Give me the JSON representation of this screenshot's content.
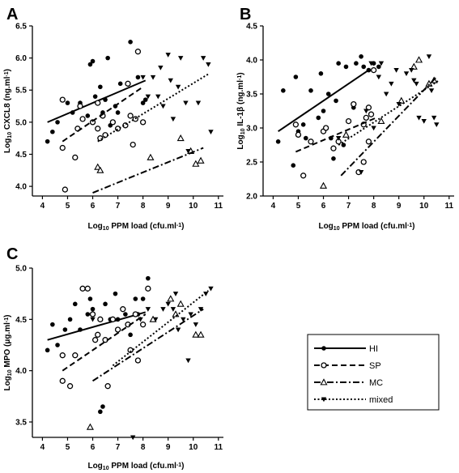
{
  "panels_text": {
    "A": "A",
    "B": "B",
    "C": "C"
  },
  "legend": {
    "items": [
      {
        "key": "HI",
        "label": "HI",
        "marker": "filled-circle",
        "line": "solid"
      },
      {
        "key": "SP",
        "label": "SP",
        "marker": "open-circle",
        "line": "dashed"
      },
      {
        "key": "MC",
        "label": "MC",
        "marker": "open-triangle",
        "line": "dash-dot"
      },
      {
        "key": "mixed",
        "label": "mixed",
        "marker": "filled-down-triangle",
        "line": "dotted"
      }
    ]
  },
  "chart_data": [
    {
      "type": "scatter",
      "panel": "A",
      "xlabel": {
        "prefix": "Log",
        "sub": "10",
        "rest": " PPM load (cfu.ml",
        "sup": "-1",
        "close": ")"
      },
      "ylabel": {
        "prefix": "Log",
        "sub": "10",
        "rest": " CXCL8 (ng.ml",
        "sup": "-1",
        "close": ")"
      },
      "xlim": [
        3.6,
        11.2
      ],
      "ylim": [
        3.85,
        6.5
      ],
      "xticks": [
        4,
        5,
        6,
        7,
        8,
        9,
        10,
        11
      ],
      "yticks": [
        4.0,
        4.5,
        5.0,
        5.5,
        6.0,
        6.5
      ],
      "ytick_labels": [
        "4.0",
        "4.5",
        "5.0",
        "5.5",
        "6.0",
        "6.5"
      ],
      "series": [
        {
          "key": "HI",
          "points": [
            [
              4.2,
              4.7
            ],
            [
              4.4,
              4.85
            ],
            [
              4.6,
              5.0
            ],
            [
              4.8,
              5.35
            ],
            [
              5.0,
              5.3
            ],
            [
              5.2,
              5.15
            ],
            [
              5.5,
              5.3
            ],
            [
              5.8,
              5.1
            ],
            [
              5.9,
              5.9
            ],
            [
              6.0,
              5.95
            ],
            [
              6.1,
              5.4
            ],
            [
              6.3,
              5.55
            ],
            [
              6.5,
              5.35
            ],
            [
              6.6,
              6.0
            ],
            [
              6.7,
              4.95
            ],
            [
              6.9,
              5.25
            ],
            [
              7.0,
              5.15
            ],
            [
              7.1,
              5.6
            ],
            [
              7.5,
              6.25
            ],
            [
              7.8,
              5.7
            ],
            [
              8.0,
              5.3
            ],
            [
              8.1,
              5.35
            ],
            [
              6.4,
              5.15
            ]
          ],
          "fit": [
            [
              4.2,
              5.0
            ],
            [
              8.1,
              5.65
            ]
          ]
        },
        {
          "key": "SP",
          "points": [
            [
              4.8,
              5.35
            ],
            [
              4.9,
              3.95
            ],
            [
              4.8,
              4.6
            ],
            [
              5.3,
              4.45
            ],
            [
              5.4,
              4.9
            ],
            [
              5.5,
              5.25
            ],
            [
              5.6,
              5.05
            ],
            [
              6.0,
              5.0
            ],
            [
              6.2,
              4.9
            ],
            [
              6.3,
              4.75
            ],
            [
              6.4,
              5.1
            ],
            [
              6.5,
              4.8
            ],
            [
              6.8,
              5.0
            ],
            [
              7.0,
              4.9
            ],
            [
              7.3,
              4.95
            ],
            [
              7.4,
              5.6
            ],
            [
              7.5,
              5.1
            ],
            [
              7.6,
              4.65
            ],
            [
              7.7,
              5.05
            ],
            [
              7.8,
              6.1
            ],
            [
              8.0,
              5.0
            ],
            [
              6.2,
              5.3
            ]
          ],
          "fit": [
            [
              4.8,
              4.7
            ],
            [
              8.0,
              5.55
            ]
          ]
        },
        {
          "key": "MC",
          "points": [
            [
              6.2,
              4.3
            ],
            [
              6.3,
              4.25
            ],
            [
              8.3,
              4.45
            ],
            [
              9.5,
              4.75
            ],
            [
              9.9,
              4.55
            ],
            [
              10.1,
              4.35
            ],
            [
              10.3,
              4.4
            ]
          ],
          "fit": [
            [
              6.0,
              3.9
            ],
            [
              10.4,
              4.6
            ]
          ]
        },
        {
          "key": "mixed",
          "points": [
            [
              8.0,
              5.7
            ],
            [
              8.2,
              5.4
            ],
            [
              8.4,
              5.7
            ],
            [
              8.6,
              5.4
            ],
            [
              8.7,
              5.85
            ],
            [
              8.8,
              5.25
            ],
            [
              9.0,
              6.05
            ],
            [
              9.2,
              5.05
            ],
            [
              9.4,
              5.55
            ],
            [
              9.5,
              6.0
            ],
            [
              9.7,
              5.3
            ],
            [
              9.8,
              4.55
            ],
            [
              10.2,
              5.3
            ],
            [
              10.4,
              6.0
            ],
            [
              10.6,
              5.9
            ],
            [
              10.7,
              4.85
            ],
            [
              9.1,
              5.65
            ]
          ],
          "fit": [
            [
              6.2,
              4.7
            ],
            [
              10.6,
              5.75
            ]
          ]
        }
      ]
    },
    {
      "type": "scatter",
      "panel": "B",
      "xlabel": {
        "prefix": "Log",
        "sub": "10",
        "rest": " PPM load (cfu.ml",
        "sup": "-1",
        "close": ")"
      },
      "ylabel": {
        "prefix": "Log",
        "sub": "10",
        "rest": " IL-1β (ng.ml",
        "sup": "-1",
        "close": ")"
      },
      "xlim": [
        3.6,
        11.2
      ],
      "ylim": [
        2.0,
        4.5
      ],
      "xticks": [
        4,
        5,
        6,
        7,
        8,
        9,
        10,
        11
      ],
      "yticks": [
        2.0,
        2.5,
        3.0,
        3.5,
        4.0,
        4.5
      ],
      "ytick_labels": [
        "2.0",
        "2.5",
        "3.0",
        "3.5",
        "4.0",
        "4.5"
      ],
      "series": [
        {
          "key": "HI",
          "points": [
            [
              4.2,
              2.8
            ],
            [
              4.4,
              3.55
            ],
            [
              4.8,
              2.45
            ],
            [
              4.9,
              3.75
            ],
            [
              5.0,
              2.95
            ],
            [
              5.3,
              2.85
            ],
            [
              5.5,
              3.55
            ],
            [
              5.8,
              3.15
            ],
            [
              5.9,
              3.8
            ],
            [
              6.0,
              3.25
            ],
            [
              6.2,
              3.5
            ],
            [
              6.3,
              2.85
            ],
            [
              6.5,
              3.4
            ],
            [
              6.6,
              3.95
            ],
            [
              6.8,
              2.75
            ],
            [
              6.9,
              3.9
            ],
            [
              7.2,
              3.3
            ],
            [
              7.3,
              3.95
            ],
            [
              7.5,
              4.05
            ],
            [
              7.6,
              3.9
            ],
            [
              7.8,
              3.85
            ],
            [
              8.0,
              3.95
            ],
            [
              8.2,
              3.9
            ],
            [
              6.4,
              2.55
            ],
            [
              5.2,
              3.05
            ]
          ],
          "fit": [
            [
              4.2,
              2.95
            ],
            [
              7.8,
              3.85
            ]
          ]
        },
        {
          "key": "SP",
          "points": [
            [
              4.9,
              3.05
            ],
            [
              5.0,
              2.9
            ],
            [
              5.2,
              2.3
            ],
            [
              5.5,
              2.8
            ],
            [
              6.0,
              2.95
            ],
            [
              6.1,
              3.0
            ],
            [
              6.4,
              2.7
            ],
            [
              6.6,
              2.8
            ],
            [
              7.0,
              3.1
            ],
            [
              7.2,
              3.35
            ],
            [
              7.4,
              2.35
            ],
            [
              7.6,
              2.5
            ],
            [
              7.7,
              3.15
            ],
            [
              7.8,
              3.3
            ],
            [
              7.8,
              2.8
            ],
            [
              7.9,
              3.2
            ],
            [
              8.0,
              3.85
            ],
            [
              7.6,
              3.05
            ]
          ],
          "fit": [
            [
              4.9,
              2.65
            ],
            [
              8.1,
              3.15
            ]
          ]
        },
        {
          "key": "MC",
          "points": [
            [
              6.0,
              2.15
            ],
            [
              6.9,
              2.9
            ],
            [
              8.3,
              3.1
            ],
            [
              9.1,
              3.4
            ],
            [
              9.6,
              3.9
            ],
            [
              9.8,
              4.0
            ],
            [
              10.2,
              3.65
            ],
            [
              10.4,
              3.7
            ]
          ],
          "fit": [
            [
              6.7,
              2.3
            ],
            [
              10.5,
              3.75
            ]
          ]
        },
        {
          "key": "mixed",
          "points": [
            [
              7.5,
              2.35
            ],
            [
              7.7,
              3.25
            ],
            [
              7.9,
              3.95
            ],
            [
              8.0,
              3.0
            ],
            [
              8.2,
              3.75
            ],
            [
              8.3,
              3.95
            ],
            [
              8.5,
              3.5
            ],
            [
              8.7,
              3.65
            ],
            [
              8.9,
              3.85
            ],
            [
              9.0,
              3.35
            ],
            [
              9.3,
              3.8
            ],
            [
              9.5,
              3.85
            ],
            [
              9.7,
              3.65
            ],
            [
              9.8,
              3.15
            ],
            [
              10.0,
              3.1
            ],
            [
              10.2,
              4.05
            ],
            [
              10.4,
              3.15
            ],
            [
              10.5,
              3.05
            ],
            [
              10.3,
              3.55
            ],
            [
              9.6,
              3.7
            ],
            [
              6.6,
              2.85
            ]
          ],
          "fit": [
            [
              6.6,
              2.75
            ],
            [
              10.6,
              3.7
            ]
          ]
        }
      ]
    },
    {
      "type": "scatter",
      "panel": "C",
      "xlabel": {
        "prefix": "Log",
        "sub": "10",
        "rest": " PPM load (cfu.ml",
        "sup": "-1",
        "close": ")"
      },
      "ylabel": {
        "prefix": "Log",
        "sub": "10",
        "rest": " MPO (μg.ml",
        "sup": "-1",
        "close": ")"
      },
      "xlim": [
        3.6,
        11.2
      ],
      "ylim": [
        3.35,
        5.0
      ],
      "xticks": [
        4,
        5,
        6,
        7,
        8,
        9,
        10,
        11
      ],
      "yticks": [
        3.5,
        4.0,
        4.5,
        5.0
      ],
      "ytick_labels": [
        "3.5",
        "4.0",
        "4.5",
        "5.0"
      ],
      "series": [
        {
          "key": "HI",
          "points": [
            [
              4.2,
              4.2
            ],
            [
              4.4,
              4.45
            ],
            [
              4.6,
              4.25
            ],
            [
              4.9,
              4.4
            ],
            [
              5.1,
              4.5
            ],
            [
              5.3,
              4.65
            ],
            [
              5.5,
              4.4
            ],
            [
              5.8,
              4.55
            ],
            [
              5.9,
              4.7
            ],
            [
              6.0,
              4.6
            ],
            [
              6.2,
              4.35
            ],
            [
              6.4,
              3.65
            ],
            [
              6.5,
              4.65
            ],
            [
              6.7,
              4.5
            ],
            [
              6.9,
              4.75
            ],
            [
              7.0,
              4.5
            ],
            [
              7.3,
              4.55
            ],
            [
              7.5,
              4.35
            ],
            [
              7.7,
              4.7
            ],
            [
              7.8,
              4.55
            ],
            [
              8.0,
              4.7
            ],
            [
              8.2,
              4.9
            ],
            [
              6.3,
              3.6
            ]
          ],
          "fit": [
            [
              4.2,
              4.3
            ],
            [
              8.1,
              4.57
            ]
          ]
        },
        {
          "key": "SP",
          "points": [
            [
              4.8,
              4.15
            ],
            [
              4.8,
              3.9
            ],
            [
              5.1,
              3.85
            ],
            [
              5.3,
              4.15
            ],
            [
              5.6,
              4.8
            ],
            [
              5.8,
              4.8
            ],
            [
              6.0,
              4.55
            ],
            [
              6.1,
              4.3
            ],
            [
              6.2,
              4.35
            ],
            [
              6.3,
              4.5
            ],
            [
              6.5,
              4.3
            ],
            [
              6.6,
              3.85
            ],
            [
              6.8,
              4.5
            ],
            [
              7.0,
              4.4
            ],
            [
              7.2,
              4.6
            ],
            [
              7.5,
              4.2
            ],
            [
              7.7,
              4.55
            ],
            [
              7.8,
              4.1
            ],
            [
              8.0,
              4.45
            ],
            [
              8.2,
              4.8
            ],
            [
              7.4,
              4.45
            ]
          ],
          "fit": [
            [
              4.8,
              4.0
            ],
            [
              8.1,
              4.55
            ]
          ]
        },
        {
          "key": "MC",
          "points": [
            [
              5.9,
              3.45
            ],
            [
              8.4,
              4.5
            ],
            [
              9.1,
              4.7
            ],
            [
              9.5,
              4.65
            ],
            [
              10.1,
              4.35
            ],
            [
              10.3,
              4.35
            ],
            [
              9.3,
              4.55
            ]
          ],
          "fit": [
            [
              6.0,
              3.9
            ],
            [
              10.4,
              4.6
            ]
          ]
        },
        {
          "key": "mixed",
          "points": [
            [
              6.0,
              4.5
            ],
            [
              7.6,
              3.35
            ],
            [
              8.2,
              4.6
            ],
            [
              8.5,
              4.5
            ],
            [
              8.8,
              4.6
            ],
            [
              9.0,
              4.65
            ],
            [
              9.2,
              4.6
            ],
            [
              9.3,
              4.75
            ],
            [
              9.4,
              4.4
            ],
            [
              9.6,
              4.5
            ],
            [
              9.8,
              4.1
            ],
            [
              10.1,
              4.45
            ],
            [
              10.3,
              4.6
            ],
            [
              10.5,
              4.75
            ],
            [
              10.7,
              4.8
            ],
            [
              9.9,
              4.55
            ],
            [
              7.9,
              4.5
            ]
          ],
          "fit": [
            [
              6.8,
              4.05
            ],
            [
              10.6,
              4.78
            ]
          ]
        }
      ]
    }
  ]
}
